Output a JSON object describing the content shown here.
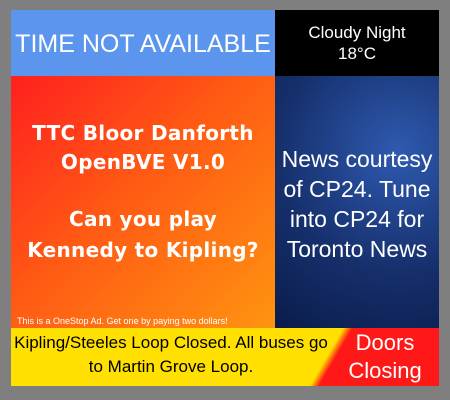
{
  "time": {
    "text": "TIME NOT AVAILABLE"
  },
  "weather": {
    "condition": "Cloudy Night",
    "temperature": "18°C"
  },
  "ad": {
    "title_line1": "TTC Bloor Danforth",
    "title_line2": "OpenBVE V1.0",
    "question_line1": "Can you play",
    "question_line2": "Kennedy to Kipling?",
    "footer": "This is a OneStop Ad. Get one by paying two dollars!"
  },
  "news": {
    "text": "News courtesy of CP24. Tune into CP24 for Toronto News"
  },
  "ticker": {
    "message": "Kipling/Steeles Loop Closed. All buses go to Martin Grove Loop.",
    "doors": "Doors Closing"
  },
  "colors": {
    "time_bg": "#5b95ee",
    "weather_bg": "#000000",
    "news_bg": "#16306d",
    "ticker_yellow": "#ffe000",
    "ticker_red": "#ff1818",
    "ad_red": "#ff1f1f",
    "ad_orange": "#ff9410",
    "frame": "#7f7f7f"
  }
}
